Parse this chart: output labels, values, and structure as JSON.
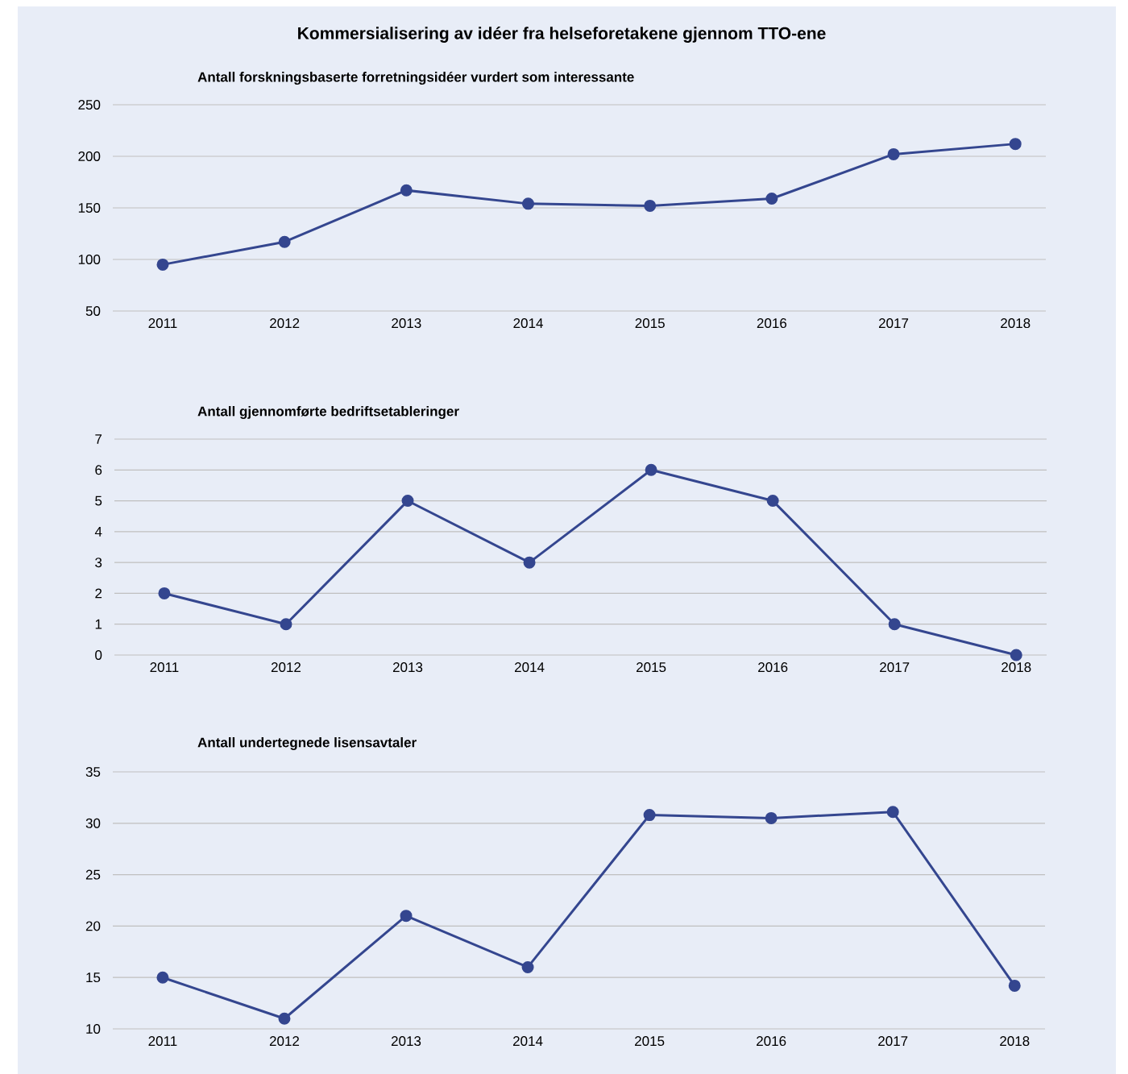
{
  "chart_data": [
    {
      "type": "line",
      "title": "Kommersialisering av idéer fra helseforetakene gjennom TTO-ene",
      "subtitle": "Antall forskningsbaserte forretningsidéer vurdert som interessante",
      "categories": [
        "2011",
        "2012",
        "2013",
        "2014",
        "2015",
        "2016",
        "2017",
        "2018"
      ],
      "values": [
        95,
        117,
        167,
        154,
        152,
        159,
        202,
        212
      ],
      "color": "#34468f",
      "marker": "circle",
      "grid": "y",
      "ylim": [
        50,
        250
      ],
      "yticks": [
        50,
        100,
        150,
        200,
        250
      ]
    },
    {
      "type": "line",
      "title": "Antall gjennomførte bedriftsetableringer",
      "categories": [
        "2011",
        "2012",
        "2013",
        "2014",
        "2015",
        "2016",
        "2017",
        "2018"
      ],
      "values": [
        2,
        1,
        5,
        3,
        6,
        5,
        1,
        0
      ],
      "color": "#34468f",
      "marker": "circle",
      "grid": "y",
      "ylim": [
        0,
        7
      ],
      "yticks": [
        0,
        1,
        2,
        3,
        4,
        5,
        6,
        7
      ]
    },
    {
      "type": "line",
      "title": "Antall undertegnede lisensavtaler",
      "categories": [
        "2011",
        "2012",
        "2013",
        "2014",
        "2015",
        "2016",
        "2017",
        "2018"
      ],
      "values": [
        15,
        11,
        21,
        16,
        30.8,
        30.5,
        31.1,
        14.2
      ],
      "color": "#34468f",
      "marker": "circle",
      "grid": "y",
      "ylim": [
        10,
        35
      ],
      "yticks": [
        10,
        15,
        20,
        25,
        30,
        35
      ]
    }
  ]
}
